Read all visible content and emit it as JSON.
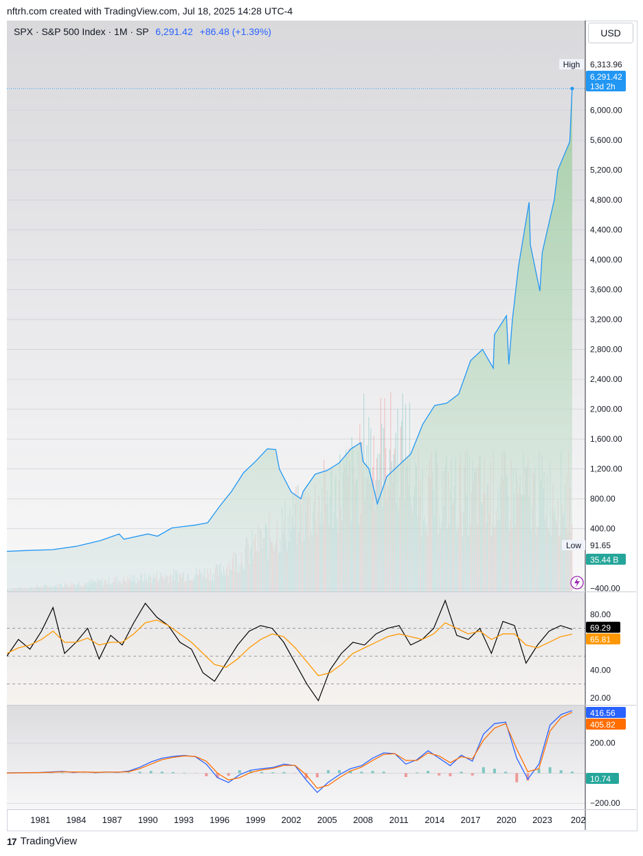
{
  "header": {
    "attribution": "nftrh.com created with TradingView.com, Jul 18, 2025 14:28 UTC-4",
    "currency_button": "USD"
  },
  "legend": {
    "symbol": "SPX · S&P 500 Index · 1M · SP",
    "last": "6,291.42",
    "change": "+86.48 (+1.39%)"
  },
  "footer": {
    "brand": "TradingView"
  },
  "colors": {
    "price_line": "#2196f3",
    "area_fill": "#a5d6a7",
    "rsi_line": "#000000",
    "rsi_ma": "#ff9800",
    "macd_line": "#2962ff",
    "signal_line": "#ff6d00",
    "hist_pos": "#26a69a",
    "hist_neg": "#ef5350",
    "label_blue": "#2196f3",
    "label_teal": "#26a69a"
  },
  "chart_data": [
    {
      "type": "line",
      "title": "SPX · S&P 500 Index · 1M · SP",
      "x": [
        1978,
        1980,
        1982,
        1984,
        1986,
        1987.6,
        1988,
        1990,
        1990.8,
        1992,
        1994,
        1995,
        1996,
        1997,
        1998,
        1999,
        2000,
        2000.7,
        2001,
        2002,
        2002.8,
        2003,
        2004,
        2005,
        2006,
        2007,
        2007.8,
        2008,
        2008.5,
        2009.2,
        2010,
        2011,
        2012,
        2013,
        2014,
        2015,
        2016,
        2017,
        2018,
        2018.9,
        2019,
        2020,
        2020.2,
        2020.5,
        2021,
        2021.9,
        2022,
        2022.8,
        2023,
        2024,
        2024.3,
        2025.3,
        2025.5
      ],
      "y": [
        96,
        110,
        120,
        165,
        240,
        330,
        260,
        330,
        300,
        410,
        450,
        480,
        700,
        900,
        1150,
        1300,
        1470,
        1460,
        1200,
        890,
        800,
        900,
        1130,
        1180,
        1280,
        1470,
        1550,
        1300,
        1200,
        735,
        1100,
        1250,
        1400,
        1800,
        2050,
        2080,
        2200,
        2650,
        2800,
        2550,
        3000,
        3250,
        2600,
        3200,
        3900,
        4770,
        4200,
        3580,
        4100,
        4800,
        5200,
        5580,
        6291.42
      ],
      "y_axis_ticks": [
        "6,000.00",
        "5,600.00",
        "5,200.00",
        "4,800.00",
        "4,400.00",
        "4,000.00",
        "3,600.00",
        "3,200.00",
        "2,800.00",
        "2,400.00",
        "2,000.00",
        "1,600.00",
        "1,200.00",
        "800.00",
        "400.00",
        "−400.00"
      ],
      "ylim": [
        -440,
        7200
      ],
      "high_label": "High",
      "high_value": "6,313.96",
      "last_label": "6,291.42",
      "countdown": "13d 2h",
      "low_label": "Low",
      "low_value": "91.65",
      "volume_label": "35.44 B",
      "volume_ylim": [
        0,
        4.2
      ]
    },
    {
      "type": "line",
      "series": [
        {
          "values": [
            50,
            62,
            55,
            68,
            85,
            52,
            60,
            70,
            48,
            65,
            58,
            74,
            88,
            78,
            72,
            60,
            55,
            38,
            32,
            45,
            58,
            68,
            72,
            70,
            60,
            45,
            30,
            18,
            40,
            52,
            60,
            58,
            66,
            70,
            72,
            58,
            62,
            70,
            90,
            65,
            62,
            70,
            52,
            75,
            72,
            45,
            58,
            68,
            72,
            69.29
          ]
        },
        {
          "values": [
            52,
            56,
            58,
            62,
            68,
            60,
            60,
            63,
            58,
            60,
            60,
            66,
            74,
            76,
            72,
            66,
            60,
            52,
            44,
            42,
            48,
            56,
            62,
            66,
            64,
            56,
            46,
            36,
            38,
            44,
            52,
            56,
            60,
            64,
            66,
            64,
            62,
            66,
            74,
            70,
            66,
            68,
            62,
            66,
            66,
            58,
            56,
            60,
            64,
            65.81
          ]
        }
      ],
      "y_axis_ticks": [
        "80.00",
        "40.00",
        "20.00"
      ],
      "ylim": [
        15,
        96
      ],
      "guide_levels": [
        70,
        50,
        30
      ],
      "value_labels": [
        "69.29",
        "65.81"
      ]
    },
    {
      "type": "line",
      "series": [
        {
          "values": [
            2,
            3,
            4,
            5,
            8,
            12,
            6,
            9,
            4,
            8,
            6,
            14,
            40,
            75,
            100,
            112,
            118,
            110,
            60,
            -30,
            -62,
            -10,
            20,
            30,
            38,
            60,
            50,
            -45,
            -128,
            -60,
            -10,
            30,
            50,
            100,
            135,
            130,
            60,
            90,
            150,
            100,
            50,
            120,
            80,
            260,
            330,
            340,
            100,
            -40,
            60,
            320,
            390,
            416.56
          ]
        },
        {
          "values": [
            1,
            2,
            3,
            4,
            6,
            9,
            8,
            8,
            6,
            7,
            7,
            10,
            30,
            60,
            90,
            105,
            115,
            112,
            80,
            0,
            -45,
            -30,
            5,
            22,
            32,
            52,
            52,
            -10,
            -100,
            -80,
            -30,
            15,
            40,
            85,
            125,
            130,
            85,
            85,
            135,
            115,
            70,
            110,
            95,
            220,
            300,
            330,
            160,
            10,
            30,
            280,
            370,
            405.82
          ]
        },
        {
          "values": [
            1,
            1,
            1,
            1,
            2,
            3,
            -2,
            1,
            -2,
            1,
            -1,
            4,
            10,
            15,
            10,
            7,
            3,
            -2,
            -20,
            -30,
            -17,
            20,
            15,
            8,
            6,
            8,
            -2,
            -35,
            -28,
            20,
            20,
            15,
            10,
            15,
            10,
            0,
            -25,
            5,
            15,
            -15,
            -20,
            10,
            -15,
            40,
            30,
            10,
            -60,
            -50,
            30,
            40,
            20,
            10.74
          ]
        }
      ],
      "y_axis_ticks": [
        "200.00",
        "−200.00"
      ],
      "ylim": [
        -240,
        450
      ],
      "value_labels": [
        "416.56",
        "405.82",
        "10.74"
      ]
    }
  ],
  "time_axis": {
    "labels": [
      "1981",
      "1984",
      "1987",
      "1990",
      "1993",
      "1996",
      "1999",
      "2002",
      "2005",
      "2008",
      "2011",
      "2014",
      "2017",
      "2020",
      "2023",
      "202"
    ],
    "xlim": [
      1978.2,
      2026.6
    ]
  }
}
